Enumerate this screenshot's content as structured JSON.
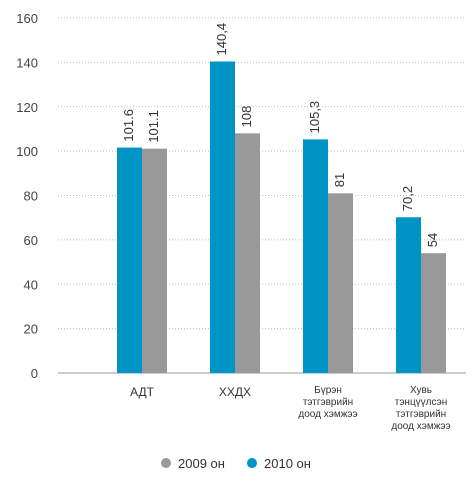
{
  "chart_data": {
    "type": "bar",
    "categories": [
      "АДТ",
      "ХХДХ",
      "Бүрэн тэтгэврийн доод хэмжээ",
      "Хувь тэнцүүлсэн тэтгэврийн доод хэмжээ"
    ],
    "category_lines": [
      [
        "АДТ"
      ],
      [
        "ХХДХ"
      ],
      [
        "Бүрэн",
        "тэтгэврийн",
        "доод хэмжээ"
      ],
      [
        "Хувь",
        "тэнцүүлсэн",
        "тэтгэврийн",
        "доод хэмжээ"
      ]
    ],
    "series": [
      {
        "name": "2010 он",
        "values": [
          101.6,
          140.4,
          105.3,
          70.2
        ],
        "labels": [
          "101.6",
          "140,4",
          "105,3",
          "70,2"
        ],
        "color": "#0094c6"
      },
      {
        "name": "2009 он",
        "values": [
          101.1,
          108,
          81,
          54
        ],
        "labels": [
          "101.1",
          "108",
          "81",
          "54"
        ],
        "color": "#999999"
      }
    ],
    "ylim": [
      0,
      160
    ],
    "yticks": [
      0,
      20,
      40,
      60,
      80,
      100,
      120,
      140,
      160
    ],
    "grid": true,
    "legend": {
      "placement": "bottom",
      "items": [
        {
          "label": "2009 он",
          "color": "#999999"
        },
        {
          "label": "2010 он",
          "color": "#0094c6"
        }
      ]
    }
  }
}
